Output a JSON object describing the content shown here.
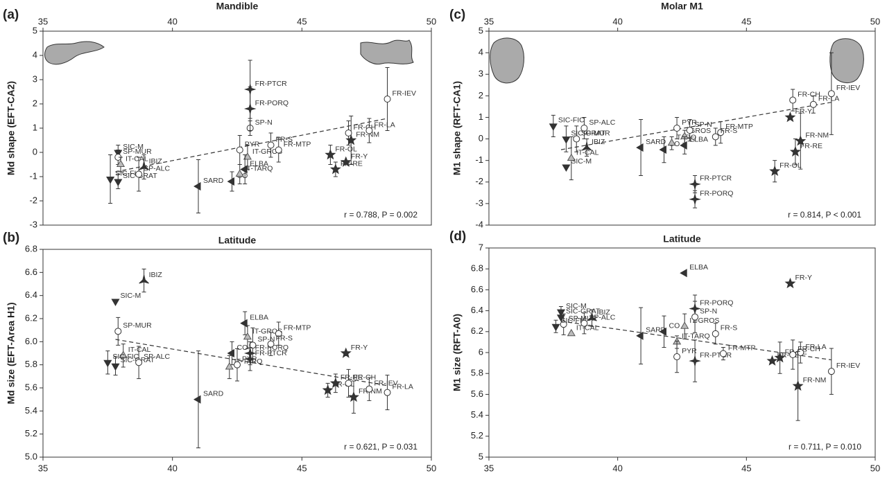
{
  "chart_data": [
    {
      "type": "scatter",
      "panel_label": "(a)",
      "title": "Mandible",
      "ylabel": "Md shape (EFT-CA2)",
      "x_axis_position": "top",
      "xlim": [
        35,
        50
      ],
      "xticks": [
        35,
        40,
        45,
        50
      ],
      "ylim": [
        -3,
        5
      ],
      "yticks": [
        -3,
        -2,
        -1,
        0,
        1,
        2,
        3,
        4,
        5
      ],
      "annotation": "r = 0.788, P = 0.002",
      "trend": {
        "x": [
          37.8,
          48.3
        ],
        "y": [
          -0.8,
          1.4
        ]
      },
      "points": [
        {
          "label": "SIC-M",
          "x": 37.9,
          "y": 0.0,
          "err": 0.3,
          "marker": "down"
        },
        {
          "label": "SP-MUR",
          "x": 37.9,
          "y": -0.2,
          "err": 0.3,
          "marker": "circle"
        },
        {
          "label": "IT-CAL",
          "x": 38.0,
          "y": -0.5,
          "err": 0.3,
          "marker": "triangle"
        },
        {
          "label": "SIC-FIC",
          "x": 37.6,
          "y": -1.1,
          "err": 1.0,
          "marker": "down"
        },
        {
          "label": "SIC-GRAT",
          "x": 37.9,
          "y": -1.2,
          "err": 0.3,
          "marker": "down"
        },
        {
          "label": "IBIZ",
          "x": 38.9,
          "y": -0.6,
          "err": 0.5,
          "marker": "tri"
        },
        {
          "label": "SP-ALC",
          "x": 38.7,
          "y": -0.9,
          "err": 0.7,
          "marker": "circle"
        },
        {
          "label": "SARD",
          "x": 41.0,
          "y": -1.4,
          "err": 1.1,
          "marker": "left"
        },
        {
          "label": "CO",
          "x": 42.3,
          "y": -1.2,
          "err": 0.4,
          "marker": "left"
        },
        {
          "label": "IT-TARQ",
          "x": 42.6,
          "y": -0.9,
          "err": 0.4,
          "marker": "triangle"
        },
        {
          "label": "IT-GROS",
          "x": 42.9,
          "y": -0.2,
          "err": 0.5,
          "marker": "triangle"
        },
        {
          "label": "ELBA",
          "x": 42.8,
          "y": -0.7,
          "err": 0.6,
          "marker": "left"
        },
        {
          "label": "PYR",
          "x": 42.6,
          "y": 0.1,
          "err": 0.6,
          "marker": "circle"
        },
        {
          "label": "SP-N",
          "x": 43.0,
          "y": 1.0,
          "err": 0.3,
          "marker": "circle"
        },
        {
          "label": "FR-PTCR",
          "x": 43.0,
          "y": 2.6,
          "err": 1.2,
          "marker": "star4"
        },
        {
          "label": "FR-PORQ",
          "x": 43.0,
          "y": 1.8,
          "err": 0.9,
          "marker": "star4"
        },
        {
          "label": "FR-S",
          "x": 43.8,
          "y": 0.3,
          "err": 0.5,
          "marker": "circle"
        },
        {
          "label": "FR-MTP",
          "x": 44.1,
          "y": 0.1,
          "err": 0.5,
          "marker": "circle"
        },
        {
          "label": "FR-OL",
          "x": 46.1,
          "y": -0.1,
          "err": 0.4,
          "marker": "star"
        },
        {
          "label": "FR-RE",
          "x": 46.3,
          "y": -0.7,
          "err": 0.3,
          "marker": "star"
        },
        {
          "label": "FR-Y",
          "x": 46.7,
          "y": -0.4,
          "marker": "star"
        },
        {
          "label": "FR-NM",
          "x": 46.9,
          "y": 0.5,
          "err": 1.0,
          "marker": "star"
        },
        {
          "label": "FR-CH",
          "x": 46.8,
          "y": 0.8,
          "err": 0.5,
          "marker": "circle"
        },
        {
          "label": "FR-LA",
          "x": 47.6,
          "y": 0.9,
          "err": 0.5,
          "marker": "circle"
        },
        {
          "label": "FR-IEV",
          "x": 48.3,
          "y": 2.2,
          "err": 1.3,
          "marker": "circle"
        }
      ]
    },
    {
      "type": "scatter",
      "panel_label": "(b)",
      "title": "Latitude",
      "ylabel": "Md size (EFT-Area H1)",
      "x_axis_position": "bottom",
      "xlim": [
        35,
        50
      ],
      "xticks": [
        35,
        40,
        45,
        50
      ],
      "ylim": [
        5.0,
        6.8
      ],
      "yticks": [
        {
          "value": 5.0,
          "label": "5.0"
        },
        5.2,
        5.4,
        5.6,
        5.8,
        {
          "value": 6.0,
          "label": "6.0"
        },
        6.2,
        6.4,
        6.6,
        6.8
      ],
      "annotation": "r = 0.621, P = 0.031",
      "trend": {
        "x": [
          37.8,
          48.3
        ],
        "y": [
          6.02,
          5.62
        ]
      },
      "points": [
        {
          "label": "IBIZ",
          "x": 38.9,
          "y": 6.53,
          "err": 0.1,
          "marker": "tri"
        },
        {
          "label": "SIC-M",
          "x": 37.8,
          "y": 6.35,
          "marker": "down"
        },
        {
          "label": "SP-MUR",
          "x": 37.9,
          "y": 6.09,
          "err": 0.12,
          "marker": "circle"
        },
        {
          "label": "IT-CAL",
          "x": 38.1,
          "y": 5.88,
          "err": 0.1,
          "marker": "triangle"
        },
        {
          "label": "SIC-FIC",
          "x": 37.5,
          "y": 5.82,
          "err": 0.1,
          "marker": "down"
        },
        {
          "label": "SIC-GRAT",
          "x": 37.8,
          "y": 5.79,
          "err": 0.08,
          "marker": "down"
        },
        {
          "label": "SP-ALC",
          "x": 38.7,
          "y": 5.82,
          "err": 0.14,
          "marker": "circle"
        },
        {
          "label": "SARD",
          "x": 41.0,
          "y": 5.5,
          "err": 0.42,
          "marker": "left"
        },
        {
          "label": "CO",
          "x": 42.3,
          "y": 5.9,
          "err": 0.1,
          "marker": "left"
        },
        {
          "label": "IT-GROS",
          "x": 42.9,
          "y": 6.04,
          "err": 0.1,
          "marker": "triangle"
        },
        {
          "label": "ELBA",
          "x": 42.8,
          "y": 6.16,
          "err": 0.1,
          "marker": "left"
        },
        {
          "label": "IT-TARQ",
          "x": 42.2,
          "y": 5.78,
          "err": 0.1,
          "marker": "triangle"
        },
        {
          "label": "PYR",
          "x": 42.5,
          "y": 5.8,
          "err": 0.14,
          "marker": "circle"
        },
        {
          "label": "SP-N",
          "x": 43.1,
          "y": 5.97,
          "err": 0.15,
          "marker": "circle"
        },
        {
          "label": "FR-PORQ",
          "x": 43.0,
          "y": 5.9,
          "err": 0.1,
          "marker": "star4"
        },
        {
          "label": "FR-PTCR",
          "x": 43.0,
          "y": 5.85,
          "err": 0.1,
          "marker": "star4"
        },
        {
          "label": "FR-MTP",
          "x": 44.1,
          "y": 6.07,
          "err": 0.1,
          "marker": "circle"
        },
        {
          "label": "FR-S",
          "x": 43.8,
          "y": 5.98,
          "err": 0.1,
          "marker": "circle"
        },
        {
          "label": "FR-Y",
          "x": 46.7,
          "y": 5.9,
          "marker": "star"
        },
        {
          "label": "FR-RE",
          "x": 46.3,
          "y": 5.64,
          "err": 0.08,
          "marker": "star"
        },
        {
          "label": "FR-OL",
          "x": 46.0,
          "y": 5.58,
          "err": 0.06,
          "marker": "star"
        },
        {
          "label": "FR-CH",
          "x": 46.8,
          "y": 5.64,
          "err": 0.12,
          "marker": "circle"
        },
        {
          "label": "FR-NM",
          "x": 47.0,
          "y": 5.52,
          "err": 0.14,
          "marker": "star"
        },
        {
          "label": "FR-IEV",
          "x": 47.6,
          "y": 5.59,
          "err": 0.1,
          "marker": "circle"
        },
        {
          "label": "FR-LA",
          "x": 48.3,
          "y": 5.56,
          "err": 0.15,
          "marker": "circle"
        }
      ]
    },
    {
      "type": "scatter",
      "panel_label": "(c)",
      "title": "Molar M1",
      "ylabel": "M1 shape (RFT-CA1)",
      "x_axis_position": "top",
      "xlim": [
        35,
        50
      ],
      "xticks": [
        35,
        40,
        45,
        50
      ],
      "ylim": [
        -4,
        5
      ],
      "yticks": [
        -4,
        -3,
        -2,
        -1,
        0,
        1,
        2,
        3,
        4,
        5
      ],
      "annotation": "r = 0.814, P < 0.001",
      "trend": {
        "x": [
          37.8,
          48.3
        ],
        "y": [
          -0.5,
          1.7
        ]
      },
      "points": [
        {
          "label": "SIC-FIC",
          "x": 37.5,
          "y": 0.6,
          "err": 0.5,
          "marker": "down"
        },
        {
          "label": "SP-ALC",
          "x": 38.7,
          "y": 0.5,
          "err": 0.5,
          "marker": "circle"
        },
        {
          "label": "SP-MUR",
          "x": 38.4,
          "y": 0.0,
          "err": 0.6,
          "marker": "circle"
        },
        {
          "label": "SIC-GRAT",
          "x": 38.0,
          "y": 0.0,
          "err": 0.6,
          "marker": "down"
        },
        {
          "label": "IBIZ",
          "x": 38.8,
          "y": -0.4,
          "err": 0.4,
          "marker": "tri"
        },
        {
          "label": "SIC-M",
          "x": 38.0,
          "y": -1.3,
          "marker": "down"
        },
        {
          "label": "IT-CAL",
          "x": 38.2,
          "y": -0.9,
          "err": 1.0,
          "marker": "triangle"
        },
        {
          "label": "SARD",
          "x": 40.9,
          "y": -0.4,
          "err": 1.3,
          "marker": "left"
        },
        {
          "label": "CO",
          "x": 41.8,
          "y": -0.5,
          "err": 0.6,
          "marker": "left"
        },
        {
          "label": "TARQ",
          "x": 42.1,
          "y": -0.2,
          "err": 0.3,
          "marker": "triangle"
        },
        {
          "label": "GROS",
          "x": 42.6,
          "y": 0.1,
          "err": 0.3,
          "marker": "triangle"
        },
        {
          "label": "ELBA",
          "x": 42.6,
          "y": -0.3,
          "err": 0.4,
          "marker": "left"
        },
        {
          "label": "PYR",
          "x": 42.3,
          "y": 0.5,
          "err": 0.5,
          "marker": "circle"
        },
        {
          "label": "SP-N",
          "x": 42.8,
          "y": 0.4,
          "err": 0.5,
          "marker": "circle"
        },
        {
          "label": "FR-PTCR",
          "x": 43.0,
          "y": -2.1,
          "err": 0.4,
          "marker": "star4"
        },
        {
          "label": "FR-PORQ",
          "x": 43.0,
          "y": -2.8,
          "err": 0.4,
          "marker": "star4"
        },
        {
          "label": "FR-MTP",
          "x": 44.0,
          "y": 0.3,
          "err": 0.5,
          "marker": "circle"
        },
        {
          "label": "FR-S",
          "x": 43.8,
          "y": 0.1,
          "err": 0.4,
          "marker": "circle"
        },
        {
          "label": "FR-CH",
          "x": 46.8,
          "y": 1.8,
          "err": 0.5,
          "marker": "circle"
        },
        {
          "label": "FR-LA",
          "x": 47.6,
          "y": 1.6,
          "err": 0.4,
          "marker": "circle"
        },
        {
          "label": "FR-Y",
          "x": 46.7,
          "y": 1.0,
          "marker": "star"
        },
        {
          "label": "FR-NM",
          "x": 47.1,
          "y": -0.1,
          "err": 1.3,
          "marker": "star"
        },
        {
          "label": "FR-RE",
          "x": 46.9,
          "y": -0.6,
          "err": 0.6,
          "marker": "star"
        },
        {
          "label": "FR-OL",
          "x": 46.1,
          "y": -1.5,
          "err": 0.5,
          "marker": "star"
        },
        {
          "label": "FR-IEV",
          "x": 48.3,
          "y": 2.1,
          "err": 1.9,
          "marker": "circle"
        }
      ]
    },
    {
      "type": "scatter",
      "panel_label": "(d)",
      "title": "Latitude",
      "ylabel": "M1 size (RFT-A0)",
      "x_axis_position": "bottom",
      "xlim": [
        35,
        50
      ],
      "xticks": [
        35,
        40,
        45,
        50
      ],
      "ylim": [
        5,
        7
      ],
      "yticks": [
        5,
        5.2,
        5.4,
        5.6,
        5.8,
        6,
        6.2,
        6.4,
        6.6,
        6.8,
        7
      ],
      "annotation": "r = 0.711, P = 0.010",
      "trend": {
        "x": [
          37.8,
          48.3
        ],
        "y": [
          6.3,
          5.93
        ]
      },
      "points": [
        {
          "label": "SIC-M",
          "x": 37.8,
          "y": 6.39,
          "err": 0.05,
          "marker": "down"
        },
        {
          "label": "SIC-GRAT",
          "x": 37.8,
          "y": 6.34,
          "marker": "down"
        },
        {
          "label": "SP-MUR",
          "x": 37.9,
          "y": 6.27,
          "err": 0.1,
          "marker": "circle"
        },
        {
          "label": "SIC-FIC",
          "x": 37.6,
          "y": 6.25,
          "err": 0.06,
          "marker": "down"
        },
        {
          "label": "IT-CAL",
          "x": 38.2,
          "y": 6.18,
          "marker": "triangle"
        },
        {
          "label": "IBIZ",
          "x": 39.0,
          "y": 6.33,
          "err": 0.08,
          "marker": "tri"
        },
        {
          "label": "SP-ALC",
          "x": 38.7,
          "y": 6.28,
          "err": 0.1,
          "marker": "circle"
        },
        {
          "label": "SARD",
          "x": 40.9,
          "y": 6.16,
          "err": 0.27,
          "marker": "left"
        },
        {
          "label": "CO",
          "x": 41.8,
          "y": 6.2,
          "err": 0.15,
          "marker": "left"
        },
        {
          "label": "IT-GROS",
          "x": 42.6,
          "y": 6.25,
          "err": 0.12,
          "marker": "triangle"
        },
        {
          "label": "IT-TARQ",
          "x": 42.3,
          "y": 6.1,
          "err": 0.06,
          "marker": "triangle"
        },
        {
          "label": "ELBA",
          "x": 42.6,
          "y": 6.76,
          "marker": "left"
        },
        {
          "label": "PYR",
          "x": 42.3,
          "y": 5.96,
          "err": 0.15,
          "marker": "circle"
        },
        {
          "label": "FR-PORQ",
          "x": 43.0,
          "y": 6.42,
          "err": 0.13,
          "marker": "star4"
        },
        {
          "label": "SP-N",
          "x": 43.0,
          "y": 6.34,
          "err": 0.15,
          "marker": "circle"
        },
        {
          "label": "FR-PTCR",
          "x": 43.0,
          "y": 5.92,
          "err": 0.2,
          "marker": "star4"
        },
        {
          "label": "FR-S",
          "x": 43.8,
          "y": 6.18,
          "err": 0.1,
          "marker": "circle"
        },
        {
          "label": "FR-MTP",
          "x": 44.1,
          "y": 5.99,
          "err": 0.06,
          "marker": "circle"
        },
        {
          "label": "FR-Y",
          "x": 46.7,
          "y": 6.66,
          "marker": "star"
        },
        {
          "label": "FR-RE",
          "x": 46.3,
          "y": 5.95,
          "err": 0.15,
          "marker": "star"
        },
        {
          "label": "FR-OL",
          "x": 46.0,
          "y": 5.92,
          "marker": "star"
        },
        {
          "label": "FR-CH",
          "x": 46.8,
          "y": 5.98,
          "err": 0.14,
          "marker": "circle"
        },
        {
          "label": "FR-LA",
          "x": 47.1,
          "y": 6.0,
          "err": 0.1,
          "marker": "circle"
        },
        {
          "label": "FR-NM",
          "x": 47.0,
          "y": 5.68,
          "err": 0.33,
          "marker": "star"
        },
        {
          "label": "FR-IEV",
          "x": 48.3,
          "y": 5.82,
          "err": 0.22,
          "marker": "circle"
        }
      ]
    }
  ]
}
